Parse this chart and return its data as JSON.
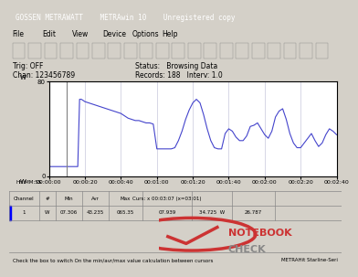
{
  "title": "GOSSEN METRAWATT    METRAwin 10    Unregistered copy",
  "menu_items": [
    "File",
    "Edit",
    "View",
    "Device",
    "Options",
    "Help"
  ],
  "tag_off": "Trig: OFF",
  "chan": "Chan: 123456789",
  "status": "Status:   Browsing Data",
  "records": "Records: 188   Interv: 1.0",
  "y_max_label": "80",
  "y_unit": "W",
  "y_min_label": "0",
  "x_labels": [
    "HH:MM:SS",
    "00:00:00",
    "00:00:20",
    "00:00:40",
    "00:01:00",
    "00:01:20",
    "00:01:40",
    "00:02:00",
    "00:02:20",
    "00:02:40"
  ],
  "table_headers": [
    "Channel",
    "#",
    "Min",
    "Avr",
    "Max",
    "Curs: x 00:03:07 (x=03:01)",
    "",
    ""
  ],
  "table_row": [
    "1",
    "W",
    "07.306",
    "43.235",
    "065.35",
    "07.939",
    "34.725  W",
    "26.787"
  ],
  "bottom_status": "Check the box to switch On the min/avr/max value calculation between cursors",
  "bottom_right": "METRAHit Starline-Seri",
  "bg_color": "#f0f0f0",
  "plot_bg": "#ffffff",
  "line_color": "#4444cc",
  "grid_color": "#c8c8dc",
  "cursor_color": "#808080",
  "y_lim": [
    0,
    80
  ],
  "waveform_x": [
    0,
    2,
    4,
    6,
    8,
    10,
    12,
    14,
    16,
    17,
    18,
    19,
    20,
    22,
    24,
    26,
    28,
    30,
    32,
    34,
    36,
    38,
    40,
    42,
    44,
    46,
    48,
    50,
    52,
    54,
    56,
    58,
    60,
    62,
    64,
    66,
    68,
    70,
    72,
    74,
    76,
    78,
    80,
    82,
    84,
    86,
    88,
    90,
    92,
    94,
    96,
    98,
    100,
    102,
    104,
    106,
    108,
    110,
    112,
    114,
    116,
    118,
    120,
    122,
    124,
    126,
    128,
    130,
    132,
    134,
    136,
    138,
    140,
    142,
    144,
    146,
    148,
    150,
    152,
    154,
    156,
    158,
    160
  ],
  "waveform_y": [
    8,
    8,
    8,
    8,
    8,
    8,
    8,
    8,
    8,
    65,
    65,
    64,
    63,
    62,
    61,
    60,
    59,
    58,
    57,
    56,
    55,
    54,
    53,
    51,
    49,
    48,
    47,
    47,
    46,
    45,
    45,
    44,
    23,
    23,
    23,
    23,
    23,
    24,
    30,
    38,
    48,
    56,
    62,
    65,
    62,
    52,
    40,
    30,
    24,
    23,
    23,
    36,
    40,
    38,
    33,
    30,
    30,
    34,
    42,
    43,
    45,
    40,
    35,
    32,
    38,
    50,
    55,
    57,
    48,
    36,
    28,
    24,
    24,
    28,
    32,
    36,
    30,
    25,
    28,
    35,
    40,
    38,
    35
  ]
}
